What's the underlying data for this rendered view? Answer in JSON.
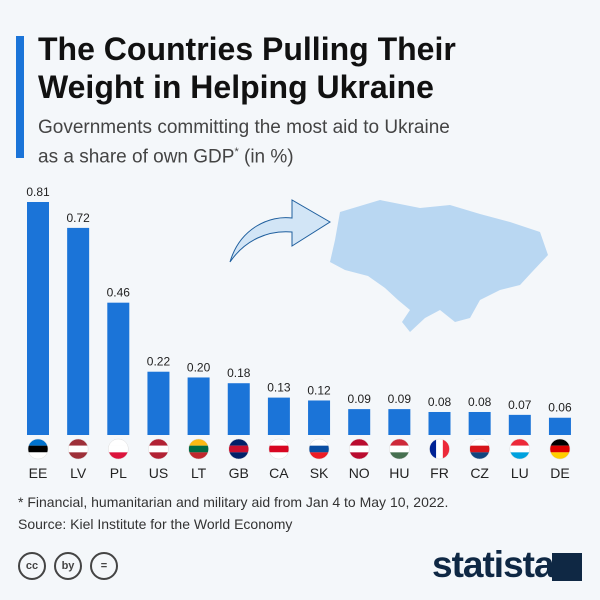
{
  "header": {
    "title_line1": "The Countries Pulling Their",
    "title_line2": "Weight in Helping Ukraine",
    "subtitle_line1": "Governments committing the most aid to Ukraine",
    "subtitle_line2a": "as a share of own GDP",
    "subtitle_sup": "*",
    "subtitle_line2b": " (in %)"
  },
  "footer": {
    "note": "* Financial, humanitarian and military aid from Jan 4 to May 10, 2022.",
    "source": "Source: Kiel Institute for the World Economy",
    "brand": "statista",
    "license_icons": [
      "cc",
      "by",
      "="
    ]
  },
  "colors": {
    "bar": "#1b74d8",
    "map": "#b9d7f2"
  },
  "chart_data": {
    "type": "bar",
    "title": "The Countries Pulling Their Weight in Helping Ukraine",
    "ylabel": "Aid as share of GDP (%)",
    "categories": [
      "EE",
      "LV",
      "PL",
      "US",
      "LT",
      "GB",
      "CA",
      "SK",
      "NO",
      "HU",
      "FR",
      "CZ",
      "LU",
      "DE"
    ],
    "values": [
      0.81,
      0.72,
      0.46,
      0.22,
      0.2,
      0.18,
      0.13,
      0.12,
      0.09,
      0.09,
      0.08,
      0.08,
      0.07,
      0.06
    ],
    "labels": [
      "0.81",
      "0.72",
      "0.46",
      "0.22",
      "0.20",
      "0.18",
      "0.13",
      "0.12",
      "0.09",
      "0.09",
      "0.08",
      "0.08",
      "0.07",
      "0.06"
    ],
    "ylim": [
      0,
      0.81
    ],
    "grid": false
  }
}
